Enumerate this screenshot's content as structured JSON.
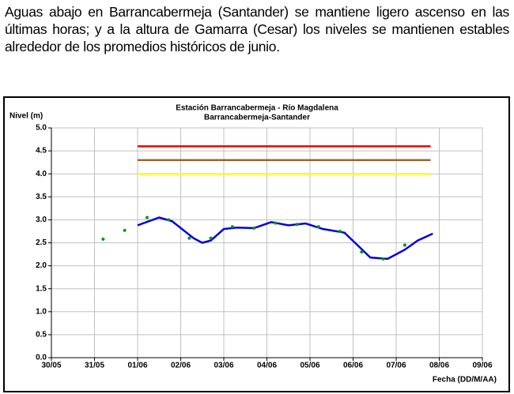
{
  "paragraph": "Aguas abajo en Barrancabermeja (Santander) se mantiene ligero ascenso en las últimas horas; y  a la altura de Gamarra (Cesar) los niveles se mantienen estables alrededor de los promedios históricos de junio.",
  "chart_data": {
    "type": "line",
    "title": "Estación Barrancabermeja - Río Magdalena",
    "subtitle": "Barrancabermeja-Santander",
    "y_label": "Nivel (m)",
    "x_label": "Fecha (DD/M/AA)",
    "xlim": [
      0,
      10
    ],
    "xticks": [
      {
        "value": 0,
        "label": "30/05"
      },
      {
        "value": 1,
        "label": "31/05"
      },
      {
        "value": 2,
        "label": "01/06"
      },
      {
        "value": 3,
        "label": "02/06"
      },
      {
        "value": 4,
        "label": "03/06"
      },
      {
        "value": 5,
        "label": "04/06"
      },
      {
        "value": 6,
        "label": "05/06"
      },
      {
        "value": 7,
        "label": "06/06"
      },
      {
        "value": 8,
        "label": "07/06"
      },
      {
        "value": 9,
        "label": "08/06"
      },
      {
        "value": 10,
        "label": "09/06"
      }
    ],
    "ylim": [
      0,
      5
    ],
    "yticks": [
      {
        "value": 0,
        "label": "0.0"
      },
      {
        "value": 0.5,
        "label": "0.5"
      },
      {
        "value": 1,
        "label": "1.0"
      },
      {
        "value": 1.5,
        "label": "1.5"
      },
      {
        "value": 2,
        "label": "2.0"
      },
      {
        "value": 2.5,
        "label": "2.5"
      },
      {
        "value": 3,
        "label": "3.0"
      },
      {
        "value": 3.5,
        "label": "3.5"
      },
      {
        "value": 4,
        "label": "4.0"
      },
      {
        "value": 4.5,
        "label": "4.5"
      },
      {
        "value": 5,
        "label": "5.0"
      }
    ],
    "grid": true,
    "series": [
      {
        "color": "#ff0000",
        "style": "line",
        "x": [
          2,
          8.8
        ],
        "values": [
          4.6,
          4.6
        ]
      },
      {
        "color": "#996633",
        "style": "line",
        "x": [
          2,
          8.8
        ],
        "values": [
          4.3,
          4.3
        ]
      },
      {
        "color": "#ffff00",
        "style": "line",
        "x": [
          2,
          8.8
        ],
        "values": [
          4.0,
          4.0
        ]
      },
      {
        "color": "#0000dd",
        "style": "line",
        "x": [
          2.0,
          2.5,
          2.8,
          3.3,
          3.5,
          3.7,
          4.0,
          4.3,
          4.7,
          5.1,
          5.5,
          5.9,
          6.3,
          6.8,
          7.1,
          7.4,
          7.8,
          8.2,
          8.5,
          8.85
        ],
        "values": [
          2.88,
          3.05,
          2.97,
          2.6,
          2.5,
          2.55,
          2.8,
          2.83,
          2.82,
          2.95,
          2.88,
          2.92,
          2.8,
          2.72,
          2.45,
          2.18,
          2.15,
          2.35,
          2.55,
          2.7
        ]
      },
      {
        "color": "#009900",
        "style": "points",
        "x": [
          1.2,
          1.7,
          2.22,
          2.72,
          3.2,
          3.7,
          4.2,
          4.7,
          5.2,
          5.7,
          6.2,
          6.7,
          7.2,
          7.7,
          8.2
        ],
        "values": [
          2.58,
          2.77,
          3.05,
          3.0,
          2.6,
          2.6,
          2.85,
          2.82,
          2.93,
          2.9,
          2.85,
          2.75,
          2.3,
          2.15,
          2.45
        ]
      }
    ]
  }
}
